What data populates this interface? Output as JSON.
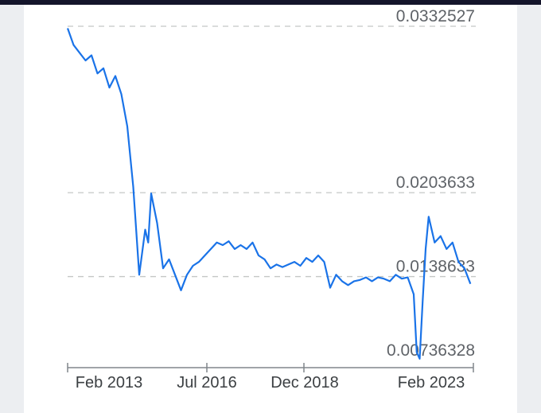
{
  "chart_data": {
    "type": "line",
    "title": "",
    "xlabel": "",
    "ylabel": "",
    "x_tick_labels": [
      "Feb 2013",
      "Jul 2016",
      "Dec 2018",
      "Feb 2023"
    ],
    "y_tick_labels": [
      "0.0332527",
      "0.0203633",
      "0.0138633",
      "0.00736328"
    ],
    "ylim": [
      0.00736328,
      0.0332527
    ],
    "xlim": [
      "2012-11",
      "2024-03"
    ],
    "line_color": "#1a73e8",
    "grid": "dashed horizontal",
    "series": [
      {
        "x": [
          "2012-11",
          "2013-01",
          "2013-03",
          "2013-05",
          "2013-07",
          "2013-09",
          "2013-11",
          "2014-01",
          "2014-03",
          "2014-05",
          "2014-07",
          "2014-09",
          "2014-11",
          "2015-01",
          "2015-02",
          "2015-03",
          "2015-05",
          "2015-07",
          "2015-09",
          "2015-11",
          "2016-01",
          "2016-03",
          "2016-05",
          "2016-07",
          "2016-09",
          "2016-11",
          "2017-01",
          "2017-03",
          "2017-05",
          "2017-07",
          "2017-09",
          "2017-11",
          "2018-01",
          "2018-03",
          "2018-05",
          "2018-07",
          "2018-09",
          "2018-11",
          "2019-01",
          "2019-03",
          "2019-05",
          "2019-07",
          "2019-09",
          "2019-11",
          "2020-01",
          "2020-03",
          "2020-05",
          "2020-07",
          "2020-09",
          "2020-11",
          "2021-01",
          "2021-03",
          "2021-05",
          "2021-07",
          "2021-09",
          "2021-11",
          "2022-01",
          "2022-03",
          "2022-05",
          "2022-07",
          "2022-08",
          "2022-09",
          "2022-10",
          "2022-11",
          "2022-12",
          "2023-02",
          "2023-04",
          "2023-06",
          "2023-08",
          "2023-10",
          "2023-12",
          "2024-02"
        ],
        "y": [
          0.0331,
          0.0318,
          0.0312,
          0.0306,
          0.031,
          0.0296,
          0.03,
          0.0285,
          0.0294,
          0.028,
          0.0255,
          0.0208,
          0.014,
          0.0175,
          0.0165,
          0.0203,
          0.018,
          0.0145,
          0.0152,
          0.014,
          0.0128,
          0.014,
          0.0147,
          0.015,
          0.0155,
          0.016,
          0.0165,
          0.0163,
          0.0166,
          0.016,
          0.0163,
          0.016,
          0.0165,
          0.0155,
          0.0152,
          0.0145,
          0.0148,
          0.0146,
          0.0148,
          0.015,
          0.0147,
          0.0153,
          0.015,
          0.0155,
          0.015,
          0.013,
          0.014,
          0.0135,
          0.0132,
          0.0135,
          0.0136,
          0.0138,
          0.0135,
          0.0138,
          0.0137,
          0.0135,
          0.014,
          0.0137,
          0.0138,
          0.0125,
          0.008,
          0.0075,
          0.012,
          0.016,
          0.0185,
          0.0165,
          0.017,
          0.016,
          0.0165,
          0.015,
          0.0145,
          0.0133
        ]
      }
    ]
  }
}
